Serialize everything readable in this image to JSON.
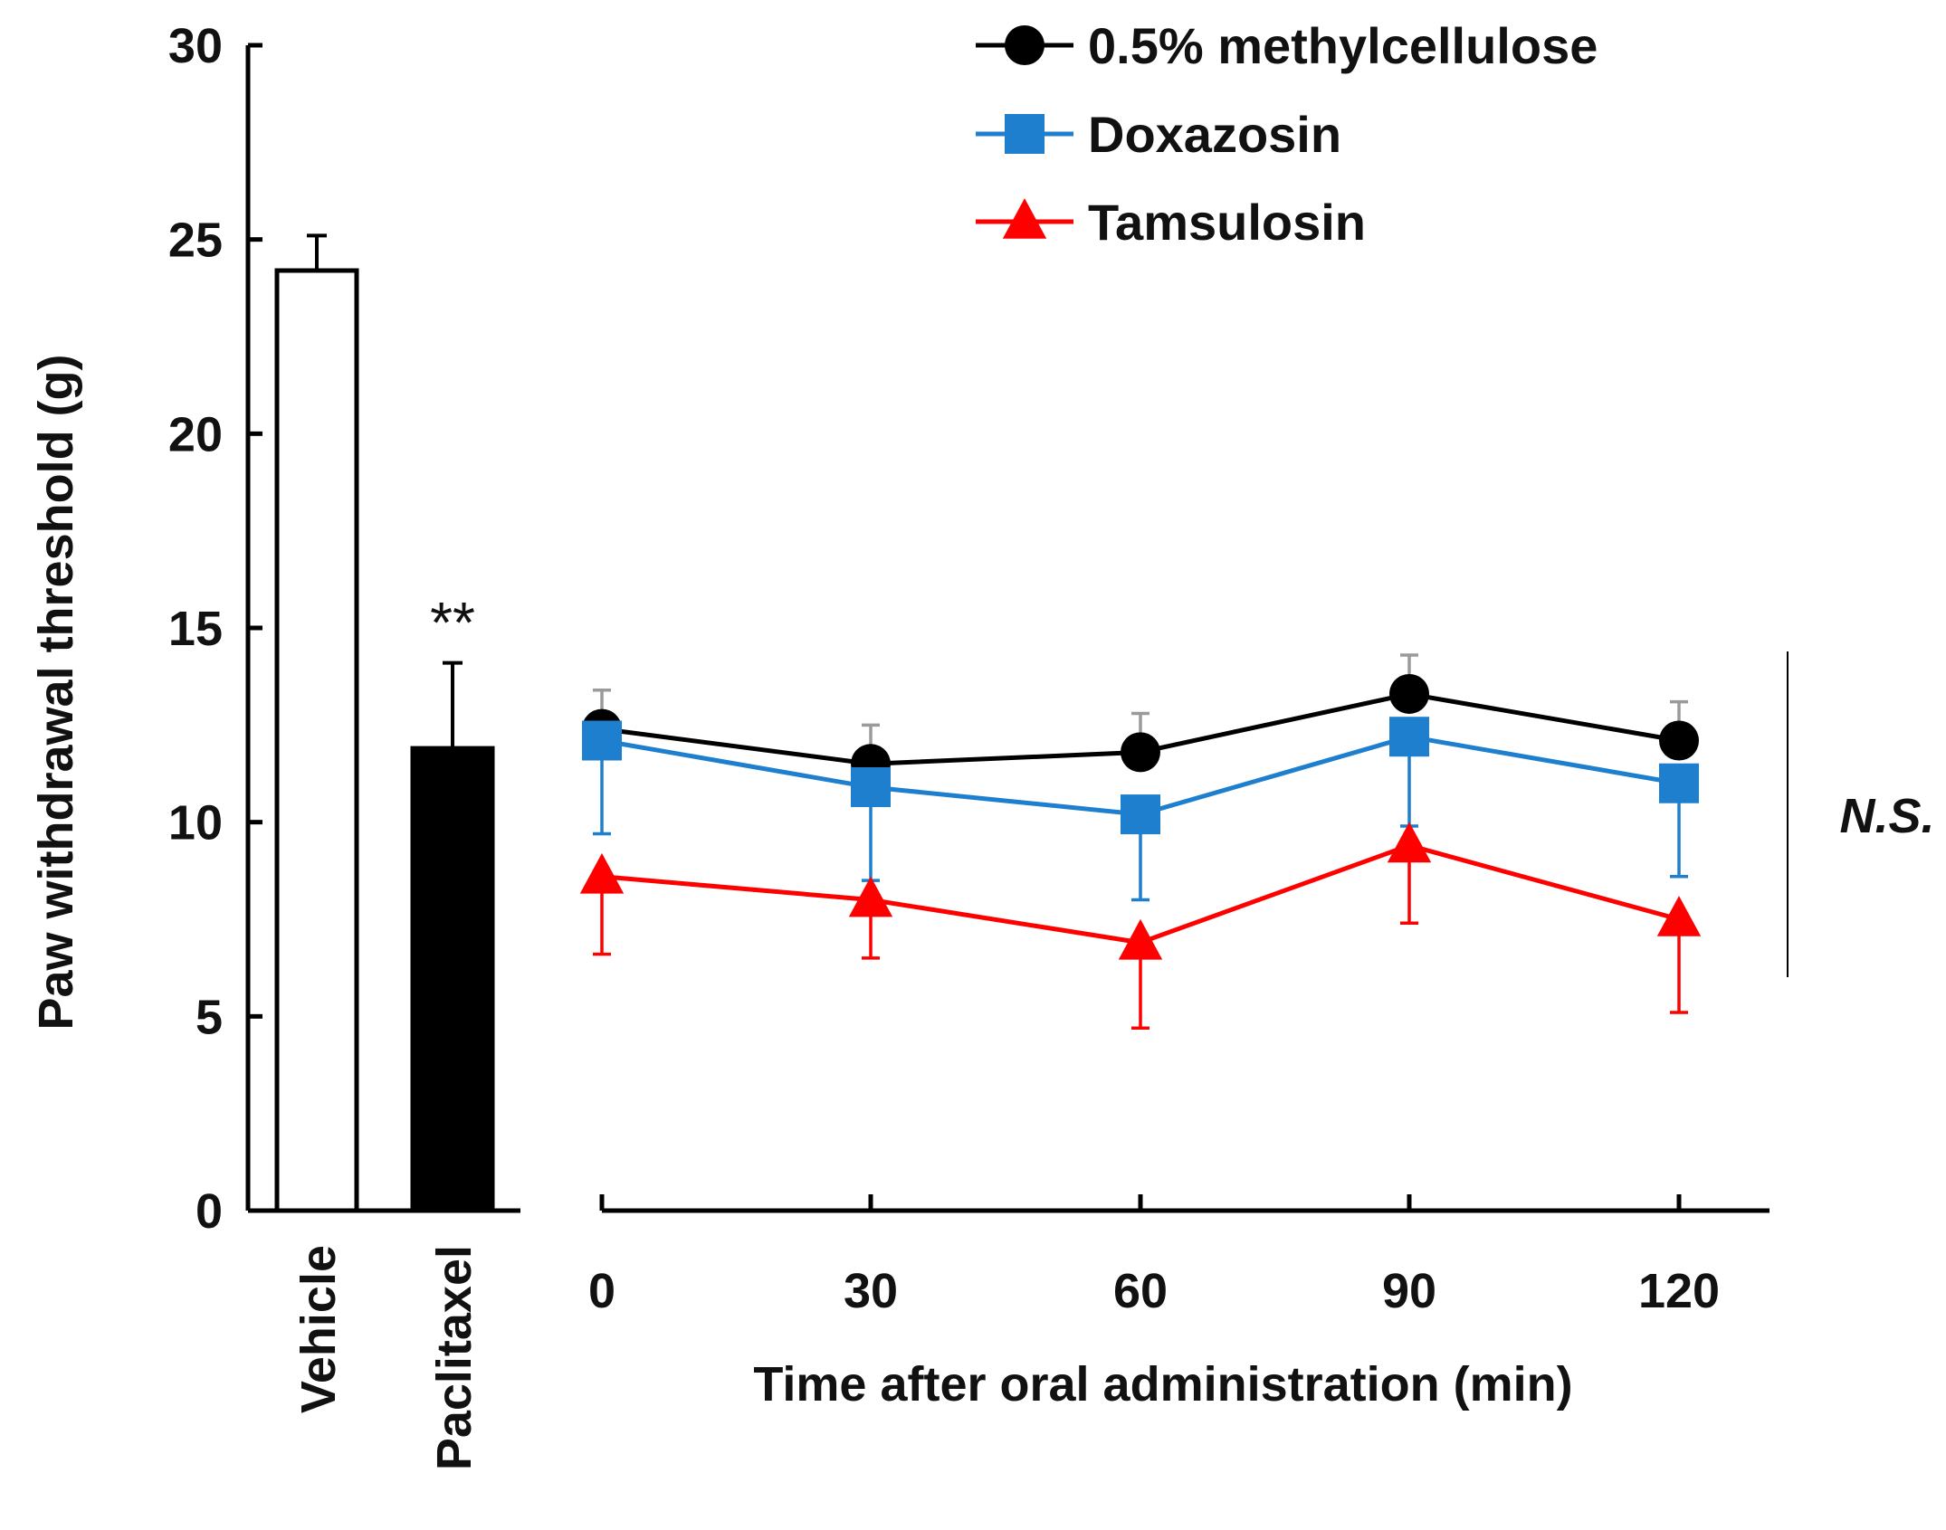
{
  "chart_data": [
    {
      "type": "bar",
      "ylabel": "Paw withdrawal threshold (g)",
      "ylim": [
        0,
        30
      ],
      "yticks": [
        "0",
        "5",
        "10",
        "15",
        "20",
        "25",
        "30"
      ],
      "categories": [
        "Vehicle",
        "Paclitaxel"
      ],
      "values": [
        24.2,
        11.9
      ],
      "errors": [
        0.9,
        2.2
      ],
      "bar_colors": [
        "#ffffff",
        "#000000"
      ],
      "annotation": "**"
    },
    {
      "type": "line",
      "xlabel": "Time after oral administration (min)",
      "x": [
        0,
        30,
        60,
        90,
        120
      ],
      "xticks": [
        "0",
        "30",
        "60",
        "90",
        "120"
      ],
      "ylim": [
        0,
        30
      ],
      "series": [
        {
          "name": "0.5% methylcellulose",
          "color": "#000000",
          "marker": "circle",
          "values": [
            12.4,
            11.5,
            11.8,
            13.3,
            12.1
          ],
          "errors": [
            1.0,
            1.0,
            1.0,
            1.0,
            1.0
          ],
          "error_direction": "up"
        },
        {
          "name": "Doxazosin",
          "color": "#1f7fcf",
          "marker": "square",
          "values": [
            12.1,
            10.9,
            10.2,
            12.2,
            11.0
          ],
          "errors": [
            2.4,
            2.4,
            2.2,
            2.3,
            2.4
          ],
          "error_direction": "down"
        },
        {
          "name": "Tamsulosin",
          "color": "#ff0000",
          "marker": "triangle",
          "values": [
            8.6,
            8.0,
            6.9,
            9.4,
            7.5
          ],
          "errors": [
            2.0,
            1.5,
            2.2,
            2.0,
            2.4
          ],
          "error_direction": "down"
        }
      ],
      "annotation": "N.S."
    }
  ]
}
